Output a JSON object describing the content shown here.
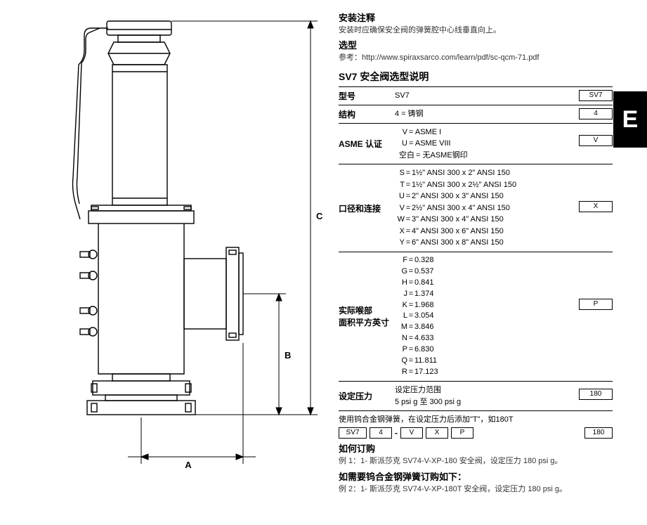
{
  "side_tab": "E",
  "diagram": {
    "dim_A": "A",
    "dim_B": "B",
    "dim_C": "C",
    "stroke": "#000000",
    "line_width": 1.4
  },
  "install": {
    "heading": "安装注释",
    "text": "安装时应确保安全阀的弹簧腔中心线垂直向上。"
  },
  "selection_ref": {
    "heading": "选型",
    "text": "参考：http://www.spiraxsarco.com/learn/pdf/sc-qcm-71.pdf"
  },
  "sel_title": "SV7 安全阀选型说明",
  "rows": {
    "model": {
      "label": "型号",
      "value": "SV7",
      "box": "SV7"
    },
    "struct": {
      "label": "结构",
      "value": "4  = 铸钢",
      "box": "4"
    },
    "asme": {
      "label": "ASME 认证",
      "opts": [
        {
          "k": "V",
          "v": "= ASME I"
        },
        {
          "k": "U",
          "v": "= ASME VIII"
        },
        {
          "k": "空白",
          "v": "= 无ASME钢印"
        }
      ],
      "box": "V"
    },
    "conn": {
      "label": "口径和连接",
      "opts": [
        {
          "k": "S",
          "v": "1½\" ANSI 300  x 2\"    ANSI 150"
        },
        {
          "k": "T",
          "v": "1½\" ANSI 300  x 2½\" ANSI 150"
        },
        {
          "k": "U",
          "v": "2\" ANSI 300  x 3\"    ANSI 150"
        },
        {
          "k": "V",
          "v": "2½\" ANSI 300  x 4\"    ANSI 150"
        },
        {
          "k": "W",
          "v": "3\" ANSI 300  x 4\"    ANSI 150"
        },
        {
          "k": "X",
          "v": "4\" ANSI 300  x 6\"    ANSI 150"
        },
        {
          "k": "Y",
          "v": "6\" ANSI 300  x 8\"    ANSI 150"
        }
      ],
      "box": "X"
    },
    "area": {
      "label1": "实际喉部",
      "label2": "面积平方英寸",
      "opts": [
        {
          "k": "F",
          "v": "0.328"
        },
        {
          "k": "G",
          "v": "0.537"
        },
        {
          "k": "H",
          "v": "0.841"
        },
        {
          "k": "J",
          "v": "1.374"
        },
        {
          "k": "K",
          "v": "1.968"
        },
        {
          "k": "L",
          "v": "3.054"
        },
        {
          "k": "M",
          "v": "3.846"
        },
        {
          "k": "N",
          "v": "4.633"
        },
        {
          "k": "P",
          "v": "6.830"
        },
        {
          "k": "Q",
          "v": "11.811"
        },
        {
          "k": "R",
          "v": "17.123"
        }
      ],
      "box": "P"
    },
    "setp": {
      "label": "设定压力",
      "line1": "设定压力范围",
      "line2": "5 psi g 至 300 psi g",
      "box": "180"
    }
  },
  "spring_note": "使用钨合金钢弹簧，在设定压力后添加\"T\"，如180T",
  "code_example": [
    "SV7",
    "4",
    "-",
    "V",
    "X",
    "P",
    "180"
  ],
  "order": {
    "heading": "如何订购",
    "ex1": "例 1：1- 斯派莎克 SV74-V-XP-180 安全阀，设定压力 180 psi g。",
    "heading2": "如需要钨合金钢弹簧订购如下：",
    "ex2": "例 2：1- 斯派莎克 SV74-V-XP-180T 安全阀，设定压力 180 psi g。"
  }
}
